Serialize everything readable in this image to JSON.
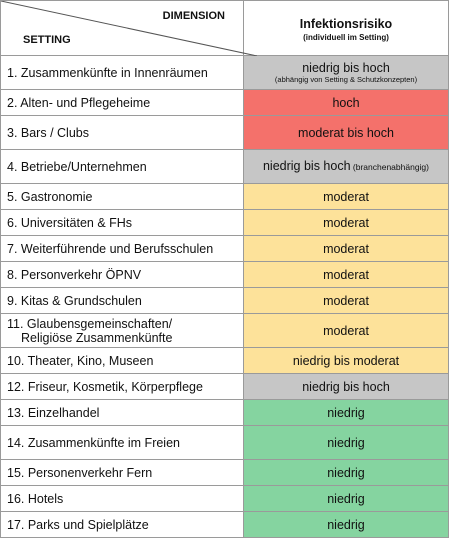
{
  "header": {
    "dimension": "DIMENSION",
    "setting": "SETTING",
    "risk_title": "Infektionsrisiko",
    "risk_subtitle": "(individuell im Setting)"
  },
  "colors": {
    "gray": "#c6c6c6",
    "red": "#f4716b",
    "yellow": "#fde29a",
    "green": "#85d4a0"
  },
  "rows": [
    {
      "setting": "1. Zusammenkünfte  in Innenräumen",
      "risk": "niedrig bis hoch",
      "note": "(abhängig von Setting & Schutzkonzepten)",
      "color": "#c6c6c6"
    },
    {
      "setting": "2. Alten- und Pflegeheime",
      "risk": "hoch",
      "color": "#f4716b"
    },
    {
      "setting": "3. Bars / Clubs",
      "risk": "moderat bis hoch",
      "color": "#f4716b"
    },
    {
      "setting": "4. Betriebe/Unternehmen",
      "risk": "niedrig bis hoch",
      "note_inline": "(branchenabhängig)",
      "color": "#c6c6c6"
    },
    {
      "setting": "5. Gastronomie",
      "risk": "moderat",
      "color": "#fde29a"
    },
    {
      "setting": "6. Universitäten & FHs",
      "risk": "moderat",
      "color": "#fde29a"
    },
    {
      "setting": "7. Weiterführende  und Berufsschulen",
      "risk": "moderat",
      "color": "#fde29a"
    },
    {
      "setting": "8. Personverkehr ÖPNV",
      "risk": "moderat",
      "color": "#fde29a"
    },
    {
      "setting": "9. Kitas & Grundschulen",
      "risk": "moderat",
      "color": "#fde29a"
    },
    {
      "setting": "11. Glaubensgemeinschaften/",
      "setting_line2": "Religiöse Zusammenkünfte",
      "risk": "moderat",
      "color": "#fde29a"
    },
    {
      "setting": "10. Theater, Kino, Museen",
      "risk": "niedrig bis moderat",
      "color": "#fde29a"
    },
    {
      "setting": "12. Friseur, Kosmetik, Körperpflege",
      "risk": "niedrig bis hoch",
      "color": "#c6c6c6"
    },
    {
      "setting": "13. Einzelhandel",
      "risk": "niedrig",
      "color": "#85d4a0"
    },
    {
      "setting": "14. Zusammenkünfte  im Freien",
      "risk": "niedrig",
      "color": "#85d4a0"
    },
    {
      "setting": "15. Personenverkehr Fern",
      "risk": "niedrig",
      "color": "#85d4a0"
    },
    {
      "setting": "16. Hotels",
      "risk": "niedrig",
      "color": "#85d4a0"
    },
    {
      "setting": "17. Parks und Spielplätze",
      "risk": "niedrig",
      "color": "#85d4a0"
    }
  ]
}
